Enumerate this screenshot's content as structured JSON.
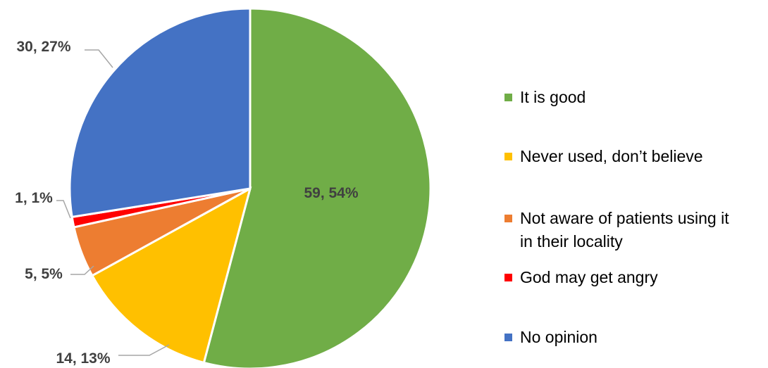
{
  "chart_data": {
    "type": "pie",
    "title": "",
    "start_angle_deg": 0,
    "direction": "clockwise",
    "legend_position": "right",
    "slices": [
      {
        "label": "It is good",
        "value": 59,
        "percent": "54%",
        "data_label": "59, 54%",
        "color": "#70AD47"
      },
      {
        "label": "Never used, don’t believe",
        "value": 14,
        "percent": "13%",
        "data_label": "14, 13%",
        "color": "#FFC000"
      },
      {
        "label": "Not aware of patients using it in their locality",
        "legend_lines": [
          "Not aware of patients using it",
          "in their locality"
        ],
        "value": 5,
        "percent": "5%",
        "data_label": "5, 5%",
        "color": "#ED7D31"
      },
      {
        "label": "God may get angry",
        "value": 1,
        "percent": "1%",
        "data_label": "1, 1%",
        "color": "#FF0000"
      },
      {
        "label": "No opinion",
        "value": 30,
        "percent": "27%",
        "data_label": "30, 27%",
        "color": "#4472C4"
      }
    ]
  }
}
